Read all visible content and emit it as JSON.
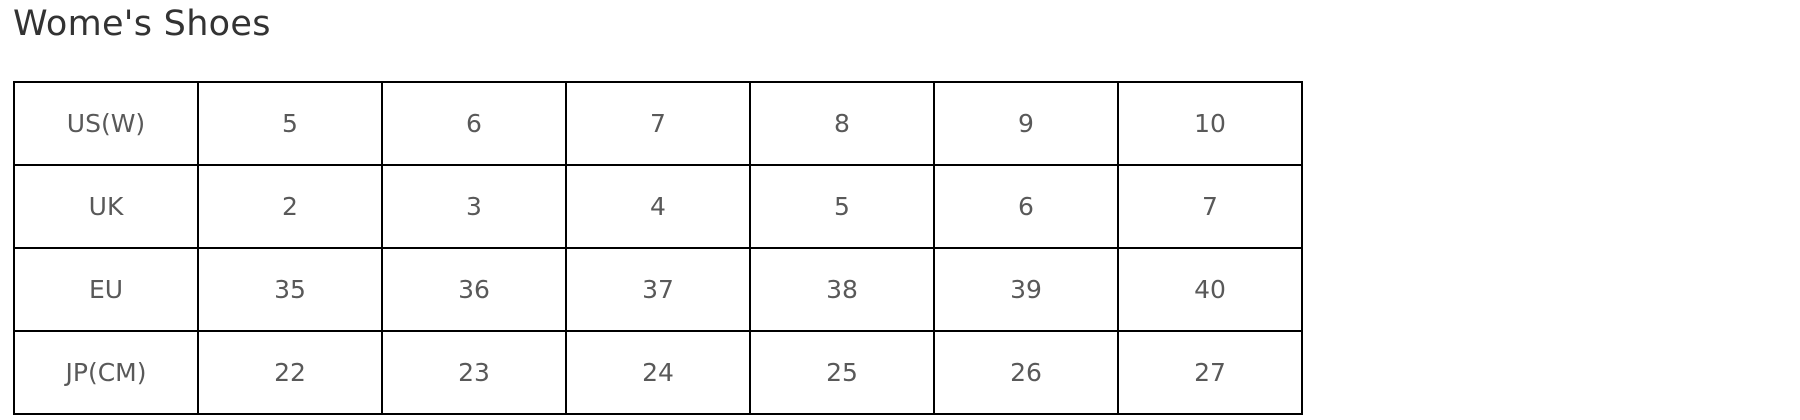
{
  "title": "Wome's Shoes",
  "table": {
    "rows": [
      [
        "US(W)",
        "5",
        "6",
        "7",
        "8",
        "9",
        "10"
      ],
      [
        "UK",
        "2",
        "3",
        "4",
        "5",
        "6",
        "7"
      ],
      [
        "EU",
        "35",
        "36",
        "37",
        "38",
        "39",
        "40"
      ],
      [
        "JP(CM)",
        "22",
        "23",
        "24",
        "25",
        "26",
        "27"
      ]
    ]
  }
}
